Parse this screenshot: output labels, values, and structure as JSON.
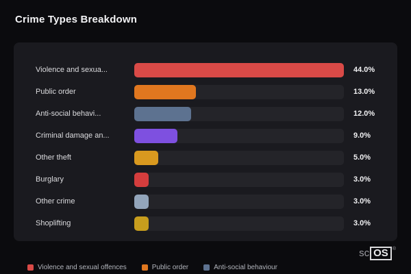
{
  "title": "Crime Types Breakdown",
  "chart_data": {
    "type": "bar",
    "orientation": "horizontal",
    "categories": [
      "Violence and sexua...",
      "Public order",
      "Anti-social behavi...",
      "Criminal damage an...",
      "Other theft",
      "Burglary",
      "Other crime",
      "Shoplifting"
    ],
    "values": [
      44.0,
      13.0,
      12.0,
      9.0,
      5.0,
      3.0,
      3.0,
      3.0
    ],
    "value_labels": [
      "44.0%",
      "13.0%",
      "12.0%",
      "9.0%",
      "5.0%",
      "3.0%",
      "3.0%",
      "3.0%"
    ],
    "bar_colors": [
      "#d94a47",
      "#e0771f",
      "#5d7290",
      "#7e50e0",
      "#d9991f",
      "#d43d3d",
      "#93a5bb",
      "#c79d1d"
    ],
    "track_color": "#242429",
    "xlim": [
      0,
      44
    ],
    "grid": false,
    "legend_position": "bottom",
    "legend": [
      {
        "label": "Violence and sexual offences",
        "color": "#d94a47"
      },
      {
        "label": "Public order",
        "color": "#e0771f"
      },
      {
        "label": "Anti-social behaviour",
        "color": "#5d7290"
      }
    ]
  },
  "watermark": {
    "prefix": "sc",
    "boxed": "OS",
    "registered": "®"
  }
}
